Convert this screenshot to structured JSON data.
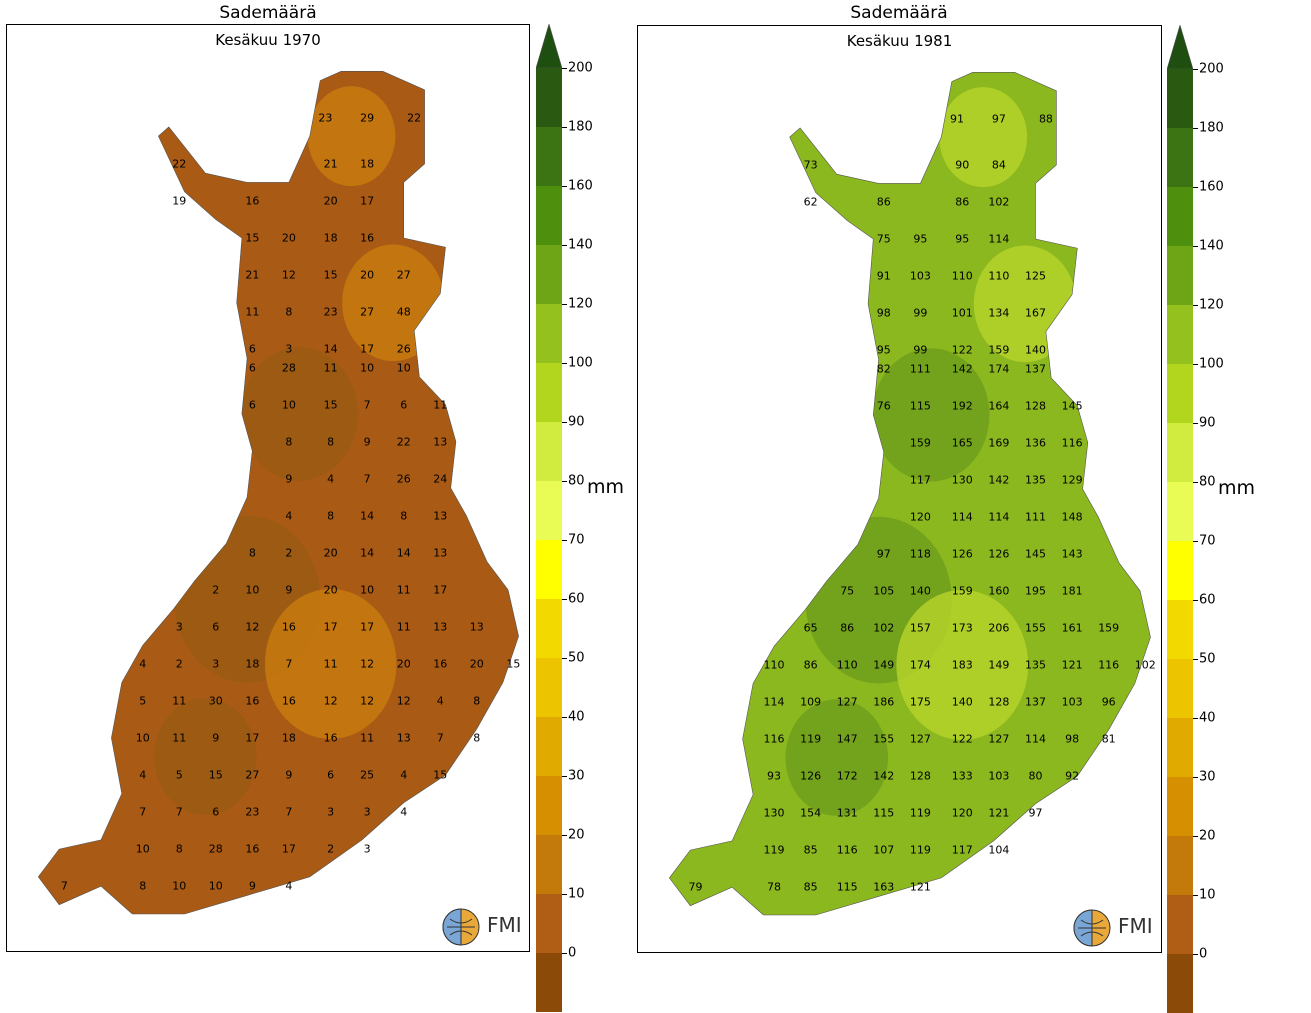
{
  "panels": [
    {
      "title": "Sademäärä",
      "subtitle": "Kesäkuu 1970",
      "fill_colors": [
        "#9a5b12",
        "#a95a14",
        "#c87a0e"
      ],
      "stations": [
        [
          "23",
          0.61,
          0.1
        ],
        [
          "29",
          0.69,
          0.1
        ],
        [
          "22",
          0.78,
          0.1
        ],
        [
          "22",
          0.33,
          0.15
        ],
        [
          "21",
          0.62,
          0.15
        ],
        [
          "18",
          0.69,
          0.15
        ],
        [
          "19",
          0.33,
          0.19
        ],
        [
          "16",
          0.47,
          0.19
        ],
        [
          "20",
          0.62,
          0.19
        ],
        [
          "17",
          0.69,
          0.19
        ],
        [
          "15",
          0.47,
          0.23
        ],
        [
          "20",
          0.54,
          0.23
        ],
        [
          "18",
          0.62,
          0.23
        ],
        [
          "16",
          0.69,
          0.23
        ],
        [
          "21",
          0.47,
          0.27
        ],
        [
          "12",
          0.54,
          0.27
        ],
        [
          "15",
          0.62,
          0.27
        ],
        [
          "20",
          0.69,
          0.27
        ],
        [
          "27",
          0.76,
          0.27
        ],
        [
          "11",
          0.47,
          0.31
        ],
        [
          "8",
          0.54,
          0.31
        ],
        [
          "23",
          0.62,
          0.31
        ],
        [
          "27",
          0.69,
          0.31
        ],
        [
          "48",
          0.76,
          0.31
        ],
        [
          "6",
          0.47,
          0.35
        ],
        [
          "3",
          0.54,
          0.35
        ],
        [
          "14",
          0.62,
          0.35
        ],
        [
          "17",
          0.69,
          0.35
        ],
        [
          "26",
          0.76,
          0.35
        ],
        [
          "6",
          0.47,
          0.37
        ],
        [
          "28",
          0.54,
          0.37
        ],
        [
          "11",
          0.62,
          0.37
        ],
        [
          "10",
          0.69,
          0.37
        ],
        [
          "10",
          0.76,
          0.37
        ],
        [
          "6",
          0.47,
          0.41
        ],
        [
          "10",
          0.54,
          0.41
        ],
        [
          "15",
          0.62,
          0.41
        ],
        [
          "7",
          0.69,
          0.41
        ],
        [
          "6",
          0.76,
          0.41
        ],
        [
          "11",
          0.83,
          0.41
        ],
        [
          "8",
          0.54,
          0.45
        ],
        [
          "8",
          0.62,
          0.45
        ],
        [
          "9",
          0.69,
          0.45
        ],
        [
          "22",
          0.76,
          0.45
        ],
        [
          "13",
          0.83,
          0.45
        ],
        [
          "9",
          0.54,
          0.49
        ],
        [
          "4",
          0.62,
          0.49
        ],
        [
          "7",
          0.69,
          0.49
        ],
        [
          "26",
          0.76,
          0.49
        ],
        [
          "24",
          0.83,
          0.49
        ],
        [
          "4",
          0.54,
          0.53
        ],
        [
          "8",
          0.62,
          0.53
        ],
        [
          "14",
          0.69,
          0.53
        ],
        [
          "8",
          0.76,
          0.53
        ],
        [
          "13",
          0.83,
          0.53
        ],
        [
          "8",
          0.47,
          0.57
        ],
        [
          "2",
          0.54,
          0.57
        ],
        [
          "20",
          0.62,
          0.57
        ],
        [
          "14",
          0.69,
          0.57
        ],
        [
          "14",
          0.76,
          0.57
        ],
        [
          "13",
          0.83,
          0.57
        ],
        [
          "2",
          0.4,
          0.61
        ],
        [
          "10",
          0.47,
          0.61
        ],
        [
          "9",
          0.54,
          0.61
        ],
        [
          "20",
          0.62,
          0.61
        ],
        [
          "10",
          0.69,
          0.61
        ],
        [
          "11",
          0.76,
          0.61
        ],
        [
          "17",
          0.83,
          0.61
        ],
        [
          "3",
          0.33,
          0.65
        ],
        [
          "6",
          0.4,
          0.65
        ],
        [
          "12",
          0.47,
          0.65
        ],
        [
          "16",
          0.54,
          0.65
        ],
        [
          "17",
          0.62,
          0.65
        ],
        [
          "17",
          0.69,
          0.65
        ],
        [
          "11",
          0.76,
          0.65
        ],
        [
          "13",
          0.83,
          0.65
        ],
        [
          "13",
          0.9,
          0.65
        ],
        [
          "4",
          0.26,
          0.69
        ],
        [
          "2",
          0.33,
          0.69
        ],
        [
          "3",
          0.4,
          0.69
        ],
        [
          "18",
          0.47,
          0.69
        ],
        [
          "7",
          0.54,
          0.69
        ],
        [
          "11",
          0.62,
          0.69
        ],
        [
          "12",
          0.69,
          0.69
        ],
        [
          "20",
          0.76,
          0.69
        ],
        [
          "16",
          0.83,
          0.69
        ],
        [
          "20",
          0.9,
          0.69
        ],
        [
          "15",
          0.97,
          0.69
        ],
        [
          "5",
          0.26,
          0.73
        ],
        [
          "11",
          0.33,
          0.73
        ],
        [
          "30",
          0.4,
          0.73
        ],
        [
          "16",
          0.47,
          0.73
        ],
        [
          "16",
          0.54,
          0.73
        ],
        [
          "12",
          0.62,
          0.73
        ],
        [
          "12",
          0.69,
          0.73
        ],
        [
          "12",
          0.76,
          0.73
        ],
        [
          "4",
          0.83,
          0.73
        ],
        [
          "8",
          0.9,
          0.73
        ],
        [
          "10",
          0.26,
          0.77
        ],
        [
          "11",
          0.33,
          0.77
        ],
        [
          "9",
          0.4,
          0.77
        ],
        [
          "17",
          0.47,
          0.77
        ],
        [
          "18",
          0.54,
          0.77
        ],
        [
          "16",
          0.62,
          0.77
        ],
        [
          "11",
          0.69,
          0.77
        ],
        [
          "13",
          0.76,
          0.77
        ],
        [
          "7",
          0.83,
          0.77
        ],
        [
          "8",
          0.9,
          0.77
        ],
        [
          "4",
          0.26,
          0.81
        ],
        [
          "5",
          0.33,
          0.81
        ],
        [
          "15",
          0.4,
          0.81
        ],
        [
          "27",
          0.47,
          0.81
        ],
        [
          "9",
          0.54,
          0.81
        ],
        [
          "6",
          0.62,
          0.81
        ],
        [
          "25",
          0.69,
          0.81
        ],
        [
          "4",
          0.76,
          0.81
        ],
        [
          "15",
          0.83,
          0.81
        ],
        [
          "7",
          0.26,
          0.85
        ],
        [
          "7",
          0.33,
          0.85
        ],
        [
          "6",
          0.4,
          0.85
        ],
        [
          "23",
          0.47,
          0.85
        ],
        [
          "7",
          0.54,
          0.85
        ],
        [
          "3",
          0.62,
          0.85
        ],
        [
          "3",
          0.69,
          0.85
        ],
        [
          "4",
          0.76,
          0.85
        ],
        [
          "10",
          0.26,
          0.89
        ],
        [
          "8",
          0.33,
          0.89
        ],
        [
          "28",
          0.4,
          0.89
        ],
        [
          "16",
          0.47,
          0.89
        ],
        [
          "17",
          0.54,
          0.89
        ],
        [
          "2",
          0.62,
          0.89
        ],
        [
          "3",
          0.69,
          0.89
        ],
        [
          "7",
          0.11,
          0.93
        ],
        [
          "8",
          0.26,
          0.93
        ],
        [
          "10",
          0.33,
          0.93
        ],
        [
          "10",
          0.4,
          0.93
        ],
        [
          "9",
          0.47,
          0.93
        ],
        [
          "4",
          0.54,
          0.93
        ]
      ]
    },
    {
      "title": "Sademäärä",
      "subtitle": "Kesäkuu 1981",
      "fill_colors": [
        "#6f9f1c",
        "#8cb81f",
        "#b4d12a"
      ],
      "stations": [
        [
          "91",
          0.61,
          0.1
        ],
        [
          "97",
          0.69,
          0.1
        ],
        [
          "88",
          0.78,
          0.1
        ],
        [
          "73",
          0.33,
          0.15
        ],
        [
          "90",
          0.62,
          0.15
        ],
        [
          "84",
          0.69,
          0.15
        ],
        [
          "62",
          0.33,
          0.19
        ],
        [
          "86",
          0.47,
          0.19
        ],
        [
          "86",
          0.62,
          0.19
        ],
        [
          "102",
          0.69,
          0.19
        ],
        [
          "75",
          0.47,
          0.23
        ],
        [
          "95",
          0.54,
          0.23
        ],
        [
          "95",
          0.62,
          0.23
        ],
        [
          "114",
          0.69,
          0.23
        ],
        [
          "91",
          0.47,
          0.27
        ],
        [
          "103",
          0.54,
          0.27
        ],
        [
          "110",
          0.62,
          0.27
        ],
        [
          "110",
          0.69,
          0.27
        ],
        [
          "125",
          0.76,
          0.27
        ],
        [
          "98",
          0.47,
          0.31
        ],
        [
          "99",
          0.54,
          0.31
        ],
        [
          "101",
          0.62,
          0.31
        ],
        [
          "134",
          0.69,
          0.31
        ],
        [
          "167",
          0.76,
          0.31
        ],
        [
          "95",
          0.47,
          0.35
        ],
        [
          "99",
          0.54,
          0.35
        ],
        [
          "122",
          0.62,
          0.35
        ],
        [
          "159",
          0.69,
          0.35
        ],
        [
          "140",
          0.76,
          0.35
        ],
        [
          "82",
          0.47,
          0.37
        ],
        [
          "111",
          0.54,
          0.37
        ],
        [
          "142",
          0.62,
          0.37
        ],
        [
          "174",
          0.69,
          0.37
        ],
        [
          "137",
          0.76,
          0.37
        ],
        [
          "76",
          0.47,
          0.41
        ],
        [
          "115",
          0.54,
          0.41
        ],
        [
          "192",
          0.62,
          0.41
        ],
        [
          "164",
          0.69,
          0.41
        ],
        [
          "128",
          0.76,
          0.41
        ],
        [
          "145",
          0.83,
          0.41
        ],
        [
          "159",
          0.54,
          0.45
        ],
        [
          "165",
          0.62,
          0.45
        ],
        [
          "169",
          0.69,
          0.45
        ],
        [
          "136",
          0.76,
          0.45
        ],
        [
          "116",
          0.83,
          0.45
        ],
        [
          "117",
          0.54,
          0.49
        ],
        [
          "130",
          0.62,
          0.49
        ],
        [
          "142",
          0.69,
          0.49
        ],
        [
          "135",
          0.76,
          0.49
        ],
        [
          "129",
          0.83,
          0.49
        ],
        [
          "120",
          0.54,
          0.53
        ],
        [
          "114",
          0.62,
          0.53
        ],
        [
          "114",
          0.69,
          0.53
        ],
        [
          "111",
          0.76,
          0.53
        ],
        [
          "148",
          0.83,
          0.53
        ],
        [
          "97",
          0.47,
          0.57
        ],
        [
          "118",
          0.54,
          0.57
        ],
        [
          "126",
          0.62,
          0.57
        ],
        [
          "126",
          0.69,
          0.57
        ],
        [
          "145",
          0.76,
          0.57
        ],
        [
          "143",
          0.83,
          0.57
        ],
        [
          "75",
          0.4,
          0.61
        ],
        [
          "105",
          0.47,
          0.61
        ],
        [
          "140",
          0.54,
          0.61
        ],
        [
          "159",
          0.62,
          0.61
        ],
        [
          "160",
          0.69,
          0.61
        ],
        [
          "195",
          0.76,
          0.61
        ],
        [
          "181",
          0.83,
          0.61
        ],
        [
          "65",
          0.33,
          0.65
        ],
        [
          "86",
          0.4,
          0.65
        ],
        [
          "102",
          0.47,
          0.65
        ],
        [
          "157",
          0.54,
          0.65
        ],
        [
          "173",
          0.62,
          0.65
        ],
        [
          "206",
          0.69,
          0.65
        ],
        [
          "155",
          0.76,
          0.65
        ],
        [
          "161",
          0.83,
          0.65
        ],
        [
          "159",
          0.9,
          0.65
        ],
        [
          "110",
          0.26,
          0.69
        ],
        [
          "86",
          0.33,
          0.69
        ],
        [
          "110",
          0.4,
          0.69
        ],
        [
          "149",
          0.47,
          0.69
        ],
        [
          "174",
          0.54,
          0.69
        ],
        [
          "183",
          0.62,
          0.69
        ],
        [
          "149",
          0.69,
          0.69
        ],
        [
          "135",
          0.76,
          0.69
        ],
        [
          "121",
          0.83,
          0.69
        ],
        [
          "116",
          0.9,
          0.69
        ],
        [
          "102",
          0.97,
          0.69
        ],
        [
          "114",
          0.26,
          0.73
        ],
        [
          "109",
          0.33,
          0.73
        ],
        [
          "127",
          0.4,
          0.73
        ],
        [
          "186",
          0.47,
          0.73
        ],
        [
          "175",
          0.54,
          0.73
        ],
        [
          "140",
          0.62,
          0.73
        ],
        [
          "128",
          0.69,
          0.73
        ],
        [
          "137",
          0.76,
          0.73
        ],
        [
          "103",
          0.83,
          0.73
        ],
        [
          "96",
          0.9,
          0.73
        ],
        [
          "116",
          0.26,
          0.77
        ],
        [
          "119",
          0.33,
          0.77
        ],
        [
          "147",
          0.4,
          0.77
        ],
        [
          "155",
          0.47,
          0.77
        ],
        [
          "127",
          0.54,
          0.77
        ],
        [
          "122",
          0.62,
          0.77
        ],
        [
          "127",
          0.69,
          0.77
        ],
        [
          "114",
          0.76,
          0.77
        ],
        [
          "98",
          0.83,
          0.77
        ],
        [
          "81",
          0.9,
          0.77
        ],
        [
          "93",
          0.26,
          0.81
        ],
        [
          "126",
          0.33,
          0.81
        ],
        [
          "172",
          0.4,
          0.81
        ],
        [
          "142",
          0.47,
          0.81
        ],
        [
          "128",
          0.54,
          0.81
        ],
        [
          "133",
          0.62,
          0.81
        ],
        [
          "103",
          0.69,
          0.81
        ],
        [
          "80",
          0.76,
          0.81
        ],
        [
          "92",
          0.83,
          0.81
        ],
        [
          "130",
          0.26,
          0.85
        ],
        [
          "154",
          0.33,
          0.85
        ],
        [
          "131",
          0.4,
          0.85
        ],
        [
          "115",
          0.47,
          0.85
        ],
        [
          "119",
          0.54,
          0.85
        ],
        [
          "120",
          0.62,
          0.85
        ],
        [
          "121",
          0.69,
          0.85
        ],
        [
          "97",
          0.76,
          0.85
        ],
        [
          "119",
          0.26,
          0.89
        ],
        [
          "85",
          0.33,
          0.89
        ],
        [
          "116",
          0.4,
          0.89
        ],
        [
          "107",
          0.47,
          0.89
        ],
        [
          "119",
          0.54,
          0.89
        ],
        [
          "117",
          0.62,
          0.89
        ],
        [
          "104",
          0.69,
          0.89
        ],
        [
          "79",
          0.11,
          0.93
        ],
        [
          "78",
          0.26,
          0.93
        ],
        [
          "85",
          0.33,
          0.93
        ],
        [
          "115",
          0.4,
          0.93
        ],
        [
          "163",
          0.47,
          0.93
        ],
        [
          "121",
          0.54,
          0.93
        ]
      ]
    }
  ],
  "colorbar": {
    "unit": "mm",
    "ticks": [
      "0",
      "10",
      "20",
      "30",
      "40",
      "50",
      "60",
      "70",
      "80",
      "90",
      "100",
      "120",
      "140",
      "160",
      "180",
      "200"
    ],
    "colors": [
      "#8b4a08",
      "#b05d16",
      "#c47a0b",
      "#d68f00",
      "#e0aa00",
      "#ecc400",
      "#f2da00",
      "#ffff00",
      "#e8fc55",
      "#d1ec3f",
      "#b2d51e",
      "#94c11e",
      "#6ea516",
      "#4f8f0e",
      "#3c7414",
      "#2a5a12"
    ],
    "extend_color": "#1f4f10"
  },
  "logo": {
    "text": "FMI"
  }
}
